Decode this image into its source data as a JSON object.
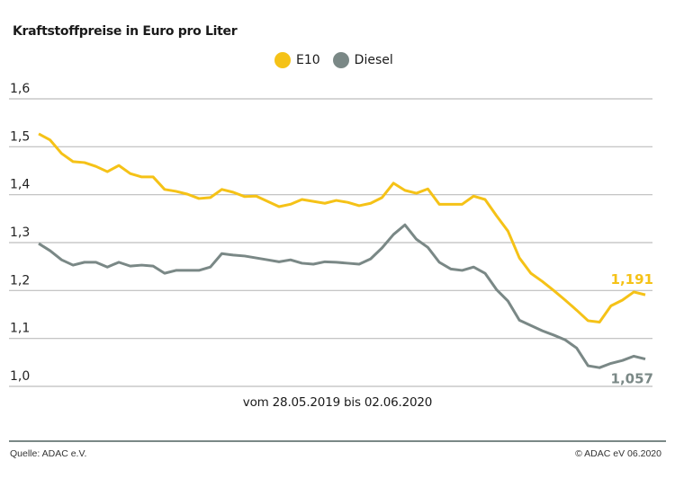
{
  "chart_data": {
    "type": "line",
    "title": "Kraftstoffpreise in Euro pro Liter",
    "xlabel": "vom 28.05.2019 bis 02.06.2020",
    "ylabel": "",
    "ylim": [
      1.0,
      1.6
    ],
    "yticks": [
      "1,0",
      "1,1",
      "1,2",
      "1,3",
      "1,4",
      "1,5",
      "1,6"
    ],
    "grid": true,
    "legend_position": "top-right",
    "series": [
      {
        "name": "E10",
        "color": "#f5c217",
        "end_label": "1,191",
        "values": [
          1.527,
          1.514,
          1.486,
          1.469,
          1.467,
          1.459,
          1.448,
          1.461,
          1.444,
          1.437,
          1.437,
          1.411,
          1.407,
          1.401,
          1.392,
          1.394,
          1.411,
          1.405,
          1.396,
          1.397,
          1.386,
          1.375,
          1.38,
          1.39,
          1.386,
          1.382,
          1.388,
          1.384,
          1.377,
          1.382,
          1.394,
          1.424,
          1.409,
          1.403,
          1.412,
          1.38,
          1.38,
          1.38,
          1.397,
          1.39,
          1.356,
          1.324,
          1.268,
          1.236,
          1.219,
          1.2,
          1.18,
          1.159,
          1.137,
          1.134,
          1.168,
          1.18,
          1.197,
          1.191
        ]
      },
      {
        "name": "Diesel",
        "color": "#7a8886",
        "end_label": "1,057",
        "values": [
          1.298,
          1.283,
          1.264,
          1.253,
          1.259,
          1.259,
          1.249,
          1.259,
          1.251,
          1.253,
          1.251,
          1.236,
          1.242,
          1.242,
          1.242,
          1.249,
          1.277,
          1.274,
          1.272,
          1.268,
          1.264,
          1.26,
          1.264,
          1.257,
          1.255,
          1.26,
          1.259,
          1.257,
          1.255,
          1.266,
          1.289,
          1.317,
          1.337,
          1.307,
          1.29,
          1.259,
          1.245,
          1.242,
          1.249,
          1.236,
          1.202,
          1.178,
          1.138,
          1.127,
          1.116,
          1.107,
          1.097,
          1.08,
          1.043,
          1.039,
          1.048,
          1.054,
          1.063,
          1.057
        ]
      }
    ]
  },
  "footer": {
    "source": "Quelle: ADAC e.V.",
    "copyright": "© ADAC eV  06.2020"
  }
}
